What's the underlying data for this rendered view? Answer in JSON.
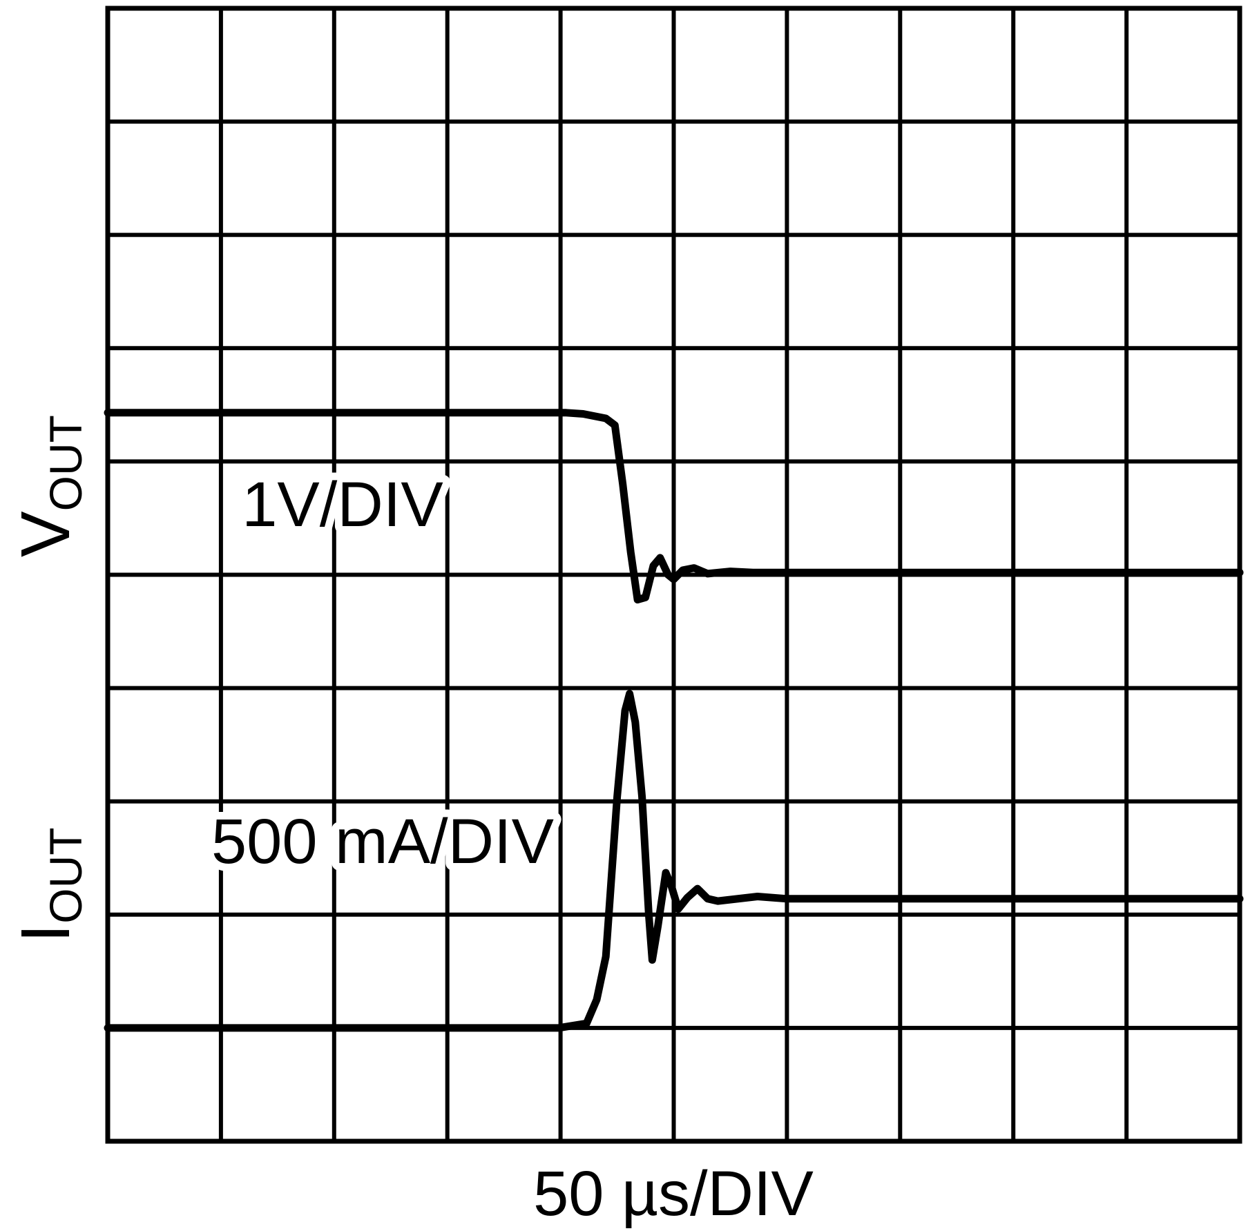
{
  "chart_data": {
    "type": "line",
    "x_label": "50 µs/DIV",
    "xlim": [
      0,
      10
    ],
    "ylim": [
      0,
      10
    ],
    "xticks": [
      0,
      1,
      2,
      3,
      4,
      5,
      6,
      7,
      8,
      9,
      10
    ],
    "yticks": [
      0,
      1,
      2,
      3,
      4,
      5,
      6,
      7,
      8,
      9,
      10
    ],
    "grid": true,
    "series": [
      {
        "label": "V",
        "label_sub": "OUT",
        "scale": "1V/DIV",
        "color": "#000000",
        "x": [
          0,
          4.05,
          4.2,
          4.4,
          4.48,
          4.55,
          4.62,
          4.68,
          4.75,
          4.82,
          4.88,
          4.95,
          5.0,
          5.08,
          5.18,
          5.3,
          5.5,
          5.7,
          10
        ],
        "values": [
          6.43,
          6.43,
          6.42,
          6.38,
          6.32,
          5.8,
          5.2,
          4.78,
          4.8,
          5.08,
          5.15,
          5.0,
          4.96,
          5.04,
          5.06,
          5.01,
          5.03,
          5.02,
          5.02
        ]
      },
      {
        "label": "I",
        "label_sub": "OUT",
        "scale": "500 mA/DIV",
        "color": "#000000",
        "x": [
          0,
          3.98,
          4.23,
          4.32,
          4.4,
          4.5,
          4.57,
          4.61,
          4.66,
          4.72,
          4.78,
          4.81,
          4.86,
          4.93,
          4.98,
          5.04,
          5.12,
          5.21,
          5.3,
          5.39,
          5.74,
          6.0,
          10
        ],
        "values": [
          1.0,
          1.0,
          1.04,
          1.25,
          1.63,
          3.04,
          3.8,
          3.95,
          3.7,
          3.04,
          2.0,
          1.6,
          1.9,
          2.37,
          2.25,
          2.05,
          2.15,
          2.23,
          2.14,
          2.12,
          2.16,
          2.14,
          2.14
        ]
      }
    ]
  }
}
